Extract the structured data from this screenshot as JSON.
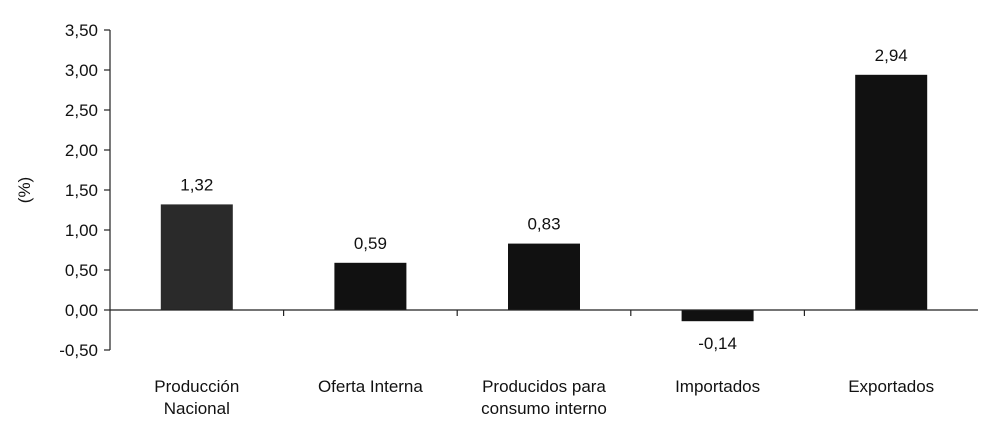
{
  "chart_data": {
    "type": "bar",
    "categories": [
      [
        "Producción",
        "Nacional"
      ],
      [
        "Oferta Interna"
      ],
      [
        "Producidos para",
        "consumo interno"
      ],
      [
        "Importados"
      ],
      [
        "Exportados"
      ]
    ],
    "values": [
      1.32,
      0.59,
      0.83,
      -0.14,
      2.94
    ],
    "value_labels": [
      "1,32",
      "0,59",
      "0,83",
      "-0,14",
      "2,94"
    ],
    "ylabel": "(%)",
    "ylim": [
      -0.5,
      3.5
    ],
    "yticks": [
      3.5,
      3.0,
      2.5,
      2.0,
      1.5,
      1.0,
      0.5,
      0.0,
      -0.5
    ],
    "ytick_labels": [
      "3,50",
      "3,00",
      "2,50",
      "2,00",
      "1,50",
      "1,00",
      "0,50",
      "0,00",
      "-0,50"
    ],
    "grid": false,
    "legend": "none",
    "colors": {
      "bar": "#111111",
      "first_bar": "#2a2a2a",
      "axis": "#222222"
    }
  }
}
